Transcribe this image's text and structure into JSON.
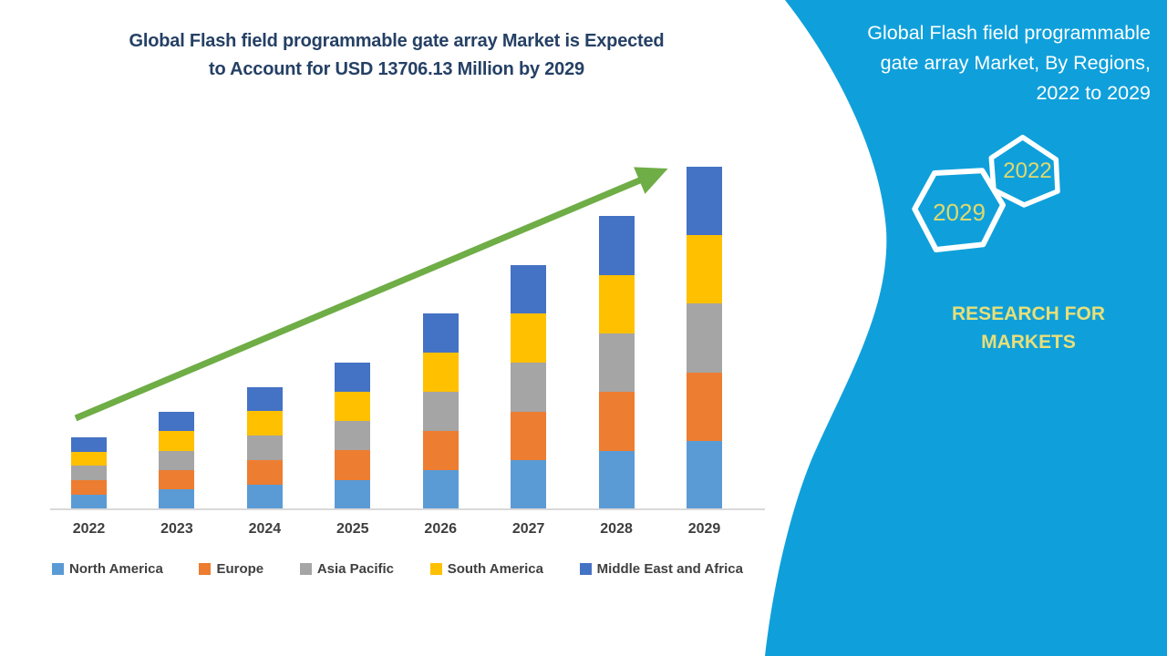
{
  "left": {
    "title_line1": "Global Flash field programmable gate array Market is Expected",
    "title_line2": "to Account for USD 13706.13 Million by 2029",
    "title_color": "#254065"
  },
  "chart_data": {
    "type": "bar",
    "stacked": true,
    "unit": "USD Million",
    "categories": [
      "2022",
      "2023",
      "2024",
      "2025",
      "2026",
      "2027",
      "2028",
      "2029"
    ],
    "series": [
      {
        "name": "North America",
        "color": "#5B9BD5",
        "values": [
          578,
          782,
          980,
          1176,
          1565,
          1955,
          2346,
          2741.23
        ]
      },
      {
        "name": "Europe",
        "color": "#ED7D31",
        "values": [
          578,
          782,
          980,
          1176,
          1565,
          1955,
          2346,
          2741.23
        ]
      },
      {
        "name": "Asia Pacific",
        "color": "#A5A5A5",
        "values": [
          578,
          782,
          980,
          1176,
          1565,
          1955,
          2346,
          2741.23
        ]
      },
      {
        "name": "South America",
        "color": "#FFC000",
        "values": [
          578,
          782,
          980,
          1176,
          1565,
          1955,
          2346,
          2741.22
        ]
      },
      {
        "name": "Middle East and Africa",
        "color": "#4472C4",
        "values": [
          578,
          782,
          980,
          1176,
          1565,
          1955,
          2346,
          2741.21
        ]
      }
    ],
    "totals": [
      2890,
      3910,
      4900,
      5880,
      7825,
      9775,
      11730,
      13706.13
    ],
    "highlight_value_2029": "13706.13",
    "legend_position": "bottom",
    "grid": false,
    "trend_arrow": true,
    "arrow_color": "#6FAD46",
    "axis_line_color": "#D9D9D9",
    "tick_label_color": "#3E3E3E"
  },
  "sidebar": {
    "background": "#0FA0DB",
    "title_line1": "Global Flash field programmable",
    "title_line2": "gate array Market, By Regions,",
    "title_line3": "2022 to 2029",
    "title_color": "#FFFFFF",
    "hexagons": [
      {
        "label": "2022"
      },
      {
        "label": "2029"
      }
    ],
    "hexagon_outline_color": "#FFFFFF",
    "hexagon_text_color": "#E0D96E",
    "brand": "RESEARCH FOR MARKETS",
    "brand_color": "#E8DF78"
  }
}
